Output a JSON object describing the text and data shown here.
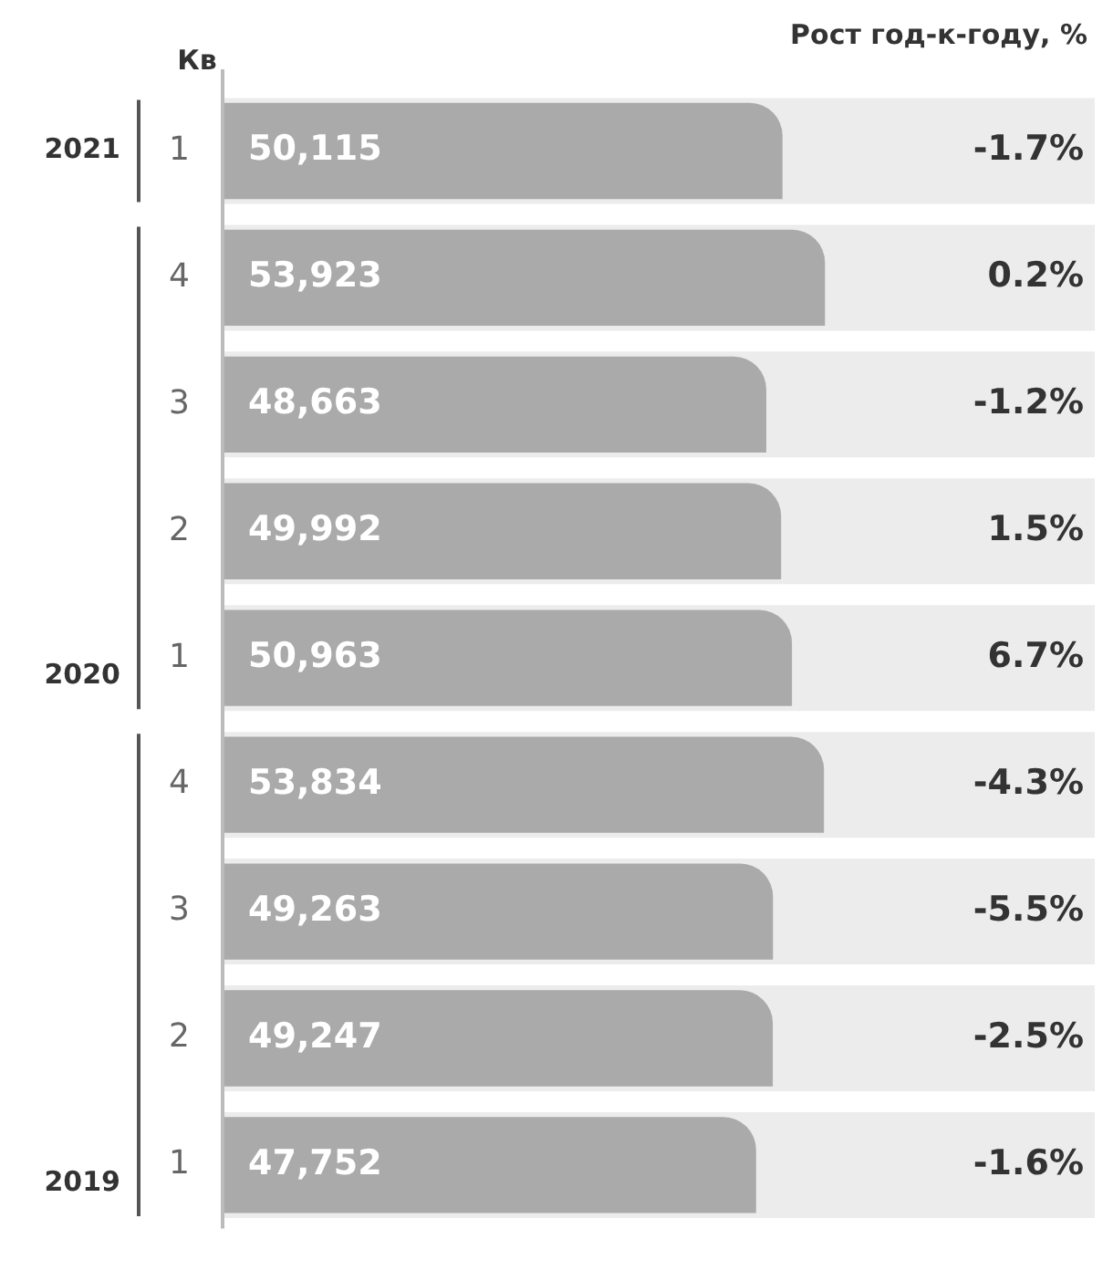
{
  "chart_data": {
    "type": "bar",
    "orientation": "horizontal",
    "ylabel": "Кв",
    "y2label": "Рост год-к-году, %",
    "categories": [
      "1",
      "4",
      "3",
      "2",
      "1",
      "4",
      "3",
      "2",
      "1"
    ],
    "values": [
      50115,
      53923,
      48663,
      49992,
      50963,
      53834,
      49263,
      49247,
      47752
    ],
    "value_labels": [
      "50,115",
      "53,923",
      "48,663",
      "49,992",
      "50,963",
      "53,834",
      "49,263",
      "49,247",
      "47,752"
    ],
    "color": "#aaaaaa",
    "grid": false,
    "legend": false,
    "tick_labels": "y",
    "annotations": [
      "-1.7%",
      "0.2%",
      "-1.2%",
      "1.5%",
      "6.7%",
      "-4.3%",
      "-5.5%",
      "-2.5%",
      "-1.6%",
      "2021",
      "2020",
      "2019"
    ]
  }
}
